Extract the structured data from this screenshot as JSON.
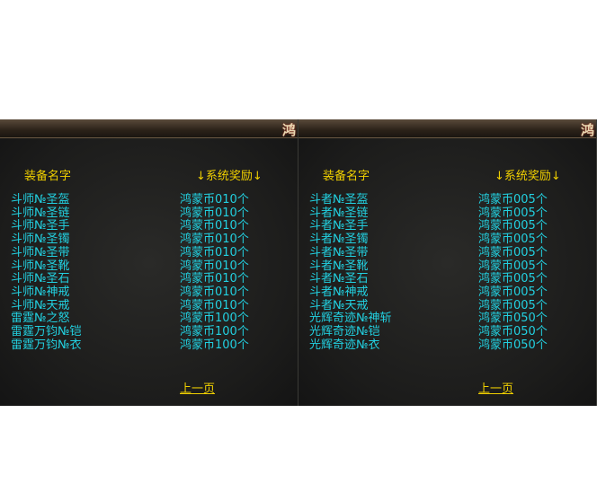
{
  "panels": [
    {
      "logo": "鸿",
      "header": {
        "name": "装备名字",
        "reward": "↓系统奖励↓"
      },
      "rows": [
        [
          "斗师№圣盔",
          "鸿蒙币010个"
        ],
        [
          "斗师№圣链",
          "鸿蒙币010个"
        ],
        [
          "斗师№圣手",
          "鸿蒙币010个"
        ],
        [
          "斗师№圣镯",
          "鸿蒙币010个"
        ],
        [
          "斗师№圣带",
          "鸿蒙币010个"
        ],
        [
          "斗师№圣靴",
          "鸿蒙币010个"
        ],
        [
          "斗师№圣石",
          "鸿蒙币010个"
        ],
        [
          "斗师№神戒",
          "鸿蒙币010个"
        ],
        [
          "斗师№天戒",
          "鸿蒙币010个"
        ],
        [
          "雷霆№之怒",
          "鸿蒙币100个"
        ],
        [
          "雷霆万钧№铠",
          "鸿蒙币100个"
        ],
        [
          "雷霆万钧№衣",
          "鸿蒙币100个"
        ]
      ],
      "prev_link": "上一页"
    },
    {
      "logo": "鸿",
      "header": {
        "name": "装备名字",
        "reward": "↓系统奖励↓"
      },
      "rows": [
        [
          "斗者№圣盔",
          "鸿蒙币005个"
        ],
        [
          "斗者№圣链",
          "鸿蒙币005个"
        ],
        [
          "斗者№圣手",
          "鸿蒙币005个"
        ],
        [
          "斗者№圣镯",
          "鸿蒙币005个"
        ],
        [
          "斗者№圣带",
          "鸿蒙币005个"
        ],
        [
          "斗者№圣靴",
          "鸿蒙币005个"
        ],
        [
          "斗者№圣石",
          "鸿蒙币005个"
        ],
        [
          "斗者№神戒",
          "鸿蒙币005个"
        ],
        [
          "斗者№天戒",
          "鸿蒙币005个"
        ],
        [
          "光辉奇迹№神斩",
          "鸿蒙币050个"
        ],
        [
          "光辉奇迹№铠",
          "鸿蒙币050个"
        ],
        [
          "光辉奇迹№衣",
          "鸿蒙币050个"
        ]
      ],
      "prev_link": "上一页"
    }
  ]
}
